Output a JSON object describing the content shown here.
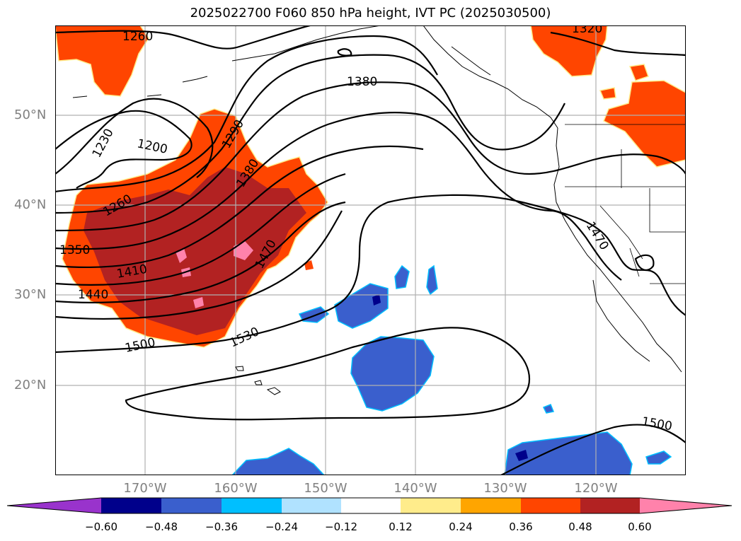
{
  "title": "2025022700 F060 850 hPa height, IVT PC (2025030500)",
  "map": {
    "lat_labels": [
      "50°N",
      "40°N",
      "30°N",
      "20°N"
    ],
    "lon_labels": [
      "170°W",
      "160°W",
      "150°W",
      "140°W",
      "130°W",
      "120°W"
    ],
    "contour_labels": [
      "1260",
      "1320",
      "1380",
      "1230",
      "1200",
      "1290",
      "1380",
      "1260",
      "1350",
      "1410",
      "1440",
      "1470",
      "1470",
      "1500",
      "1530",
      "1500"
    ],
    "colors": {
      "gridline": "#b0b0b0",
      "contour": "#000000",
      "coast": "#000000"
    }
  },
  "colorbar": {
    "ticks": [
      "−0.60",
      "−0.48",
      "−0.36",
      "−0.24",
      "−0.12",
      "0.12",
      "0.24",
      "0.36",
      "0.48",
      "0.60"
    ],
    "colors": [
      "#9933cc",
      "#00008b",
      "#3a5fcd",
      "#00bfff",
      "#b0e2ff",
      "#ffffff",
      "#ffec8b",
      "#ffa500",
      "#ff4500",
      "#b22222",
      "#ff82ab"
    ]
  }
}
